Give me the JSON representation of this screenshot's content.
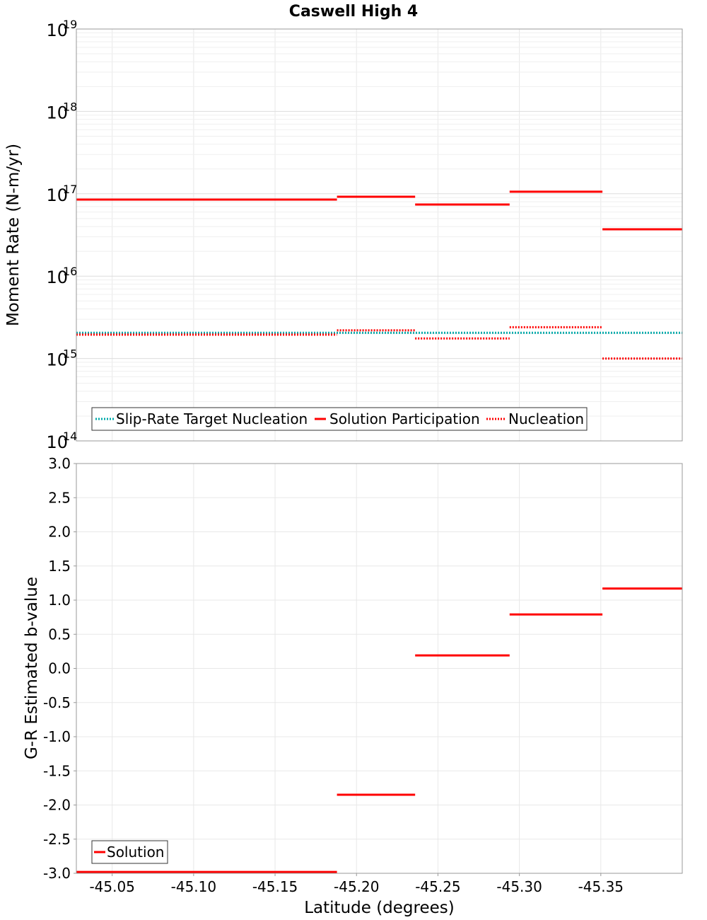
{
  "title": "Caswell High 4",
  "chart_data": [
    {
      "type": "line",
      "title": "Caswell High 4",
      "ylabel": "Moment Rate (N-m/yr)",
      "yscale": "log",
      "ylim": [
        100000000000000.0,
        1e+19
      ],
      "yticks": [
        {
          "base": "10",
          "exp": "14",
          "value": 100000000000000.0
        },
        {
          "base": "10",
          "exp": "15",
          "value": 1000000000000000.0
        },
        {
          "base": "10",
          "exp": "16",
          "value": 1e+16
        },
        {
          "base": "10",
          "exp": "17",
          "value": 1e+17
        },
        {
          "base": "10",
          "exp": "18",
          "value": 1e+18
        },
        {
          "base": "10",
          "exp": "19",
          "value": 1e+19
        }
      ],
      "xlim": [
        -45.028,
        -45.4
      ],
      "grid": true,
      "legend_position": "bottom-left",
      "series": [
        {
          "name": "Slip-Rate Target Nucleation",
          "color": "#00aaaa",
          "style": "dotted",
          "segments": [
            [
              -45.028,
              -45.4,
              2050000000000000.0
            ]
          ]
        },
        {
          "name": "Solution Participation",
          "color": "#ff0000",
          "style": "solid",
          "segments": [
            [
              -45.028,
              -45.188,
              8.5e+16
            ],
            [
              -45.188,
              -45.236,
              9.2e+16
            ],
            [
              -45.236,
              -45.294,
              7.4e+16
            ],
            [
              -45.294,
              -45.351,
              1.06e+17
            ],
            [
              -45.351,
              -45.4,
              3.7e+16
            ]
          ]
        },
        {
          "name": "Nucleation",
          "color": "#ff0000",
          "style": "dotted",
          "segments": [
            [
              -45.028,
              -45.188,
              1950000000000000.0
            ],
            [
              -45.188,
              -45.236,
              2200000000000000.0
            ],
            [
              -45.236,
              -45.294,
              1750000000000000.0
            ],
            [
              -45.294,
              -45.351,
              2400000000000000.0
            ],
            [
              -45.351,
              -45.4,
              1000000000000000.0
            ]
          ]
        }
      ]
    },
    {
      "type": "line",
      "xlabel": "Latitude (degrees)",
      "ylabel": "G-R Estimated b-value",
      "ylim": [
        -3.0,
        3.0
      ],
      "yticks": [
        "3.0",
        "2.5",
        "2.0",
        "1.5",
        "1.0",
        "0.5",
        "0.0",
        "-0.5",
        "-1.0",
        "-1.5",
        "-2.0",
        "-2.5",
        "-3.0"
      ],
      "xlim": [
        -45.028,
        -45.4
      ],
      "xticks": [
        "-45.05",
        "-45.10",
        "-45.15",
        "-45.20",
        "-45.25",
        "-45.30",
        "-45.35"
      ],
      "grid": true,
      "legend_position": "bottom-left",
      "series": [
        {
          "name": "Solution",
          "color": "#ff0000",
          "style": "solid",
          "segments": [
            [
              -45.028,
              -45.188,
              -2.98
            ],
            [
              -45.188,
              -45.236,
              -1.85
            ],
            [
              -45.236,
              -45.294,
              0.19
            ],
            [
              -45.294,
              -45.351,
              0.79
            ],
            [
              -45.351,
              -45.4,
              1.17
            ]
          ]
        }
      ]
    }
  ]
}
